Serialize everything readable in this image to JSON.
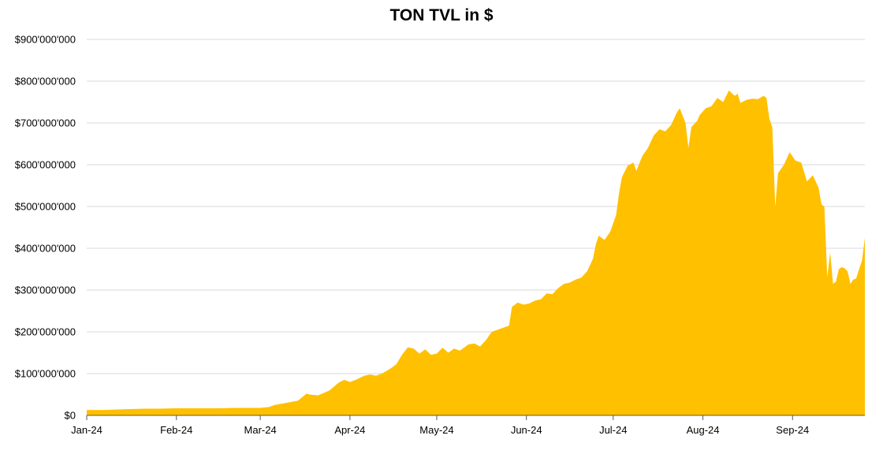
{
  "chart_data": {
    "type": "area",
    "title": "TON TVL in $",
    "xlabel": "",
    "ylabel": "",
    "ylim": [
      0,
      900000000
    ],
    "y_ticks": [
      {
        "value": 0,
        "label": "$0"
      },
      {
        "value": 100000000,
        "label": "$100'000'000"
      },
      {
        "value": 200000000,
        "label": "$200'000'000"
      },
      {
        "value": 300000000,
        "label": "$300'000'000"
      },
      {
        "value": 400000000,
        "label": "$400'000'000"
      },
      {
        "value": 500000000,
        "label": "$500'000'000"
      },
      {
        "value": 600000000,
        "label": "$600'000'000"
      },
      {
        "value": 700000000,
        "label": "$700'000'000"
      },
      {
        "value": 800000000,
        "label": "$800'000'000"
      },
      {
        "value": 900000000,
        "label": "$900'000'000"
      }
    ],
    "x_ticks": [
      {
        "date": "2024-01-01",
        "label": "Jan-24"
      },
      {
        "date": "2024-02-01",
        "label": "Feb-24"
      },
      {
        "date": "2024-03-01",
        "label": "Mar-24"
      },
      {
        "date": "2024-04-01",
        "label": "Apr-24"
      },
      {
        "date": "2024-05-01",
        "label": "May-24"
      },
      {
        "date": "2024-06-01",
        "label": "Jun-24"
      },
      {
        "date": "2024-07-01",
        "label": "Jul-24"
      },
      {
        "date": "2024-08-01",
        "label": "Aug-24"
      },
      {
        "date": "2024-09-01",
        "label": "Sep-24"
      }
    ],
    "xlim": [
      "2024-01-01",
      "2024-09-26"
    ],
    "grid": "horizontal",
    "legend": "none",
    "color": "#FFC000",
    "series": [
      {
        "points": [
          [
            "2024-01-01",
            13000000
          ],
          [
            "2024-01-06",
            13000000
          ],
          [
            "2024-01-11",
            14000000
          ],
          [
            "2024-01-16",
            15000000
          ],
          [
            "2024-01-21",
            16000000
          ],
          [
            "2024-01-26",
            16000000
          ],
          [
            "2024-02-01",
            17000000
          ],
          [
            "2024-02-06",
            17000000
          ],
          [
            "2024-02-11",
            17000000
          ],
          [
            "2024-02-16",
            17000000
          ],
          [
            "2024-02-21",
            18000000
          ],
          [
            "2024-02-26",
            18000000
          ],
          [
            "2024-03-01",
            18000000
          ],
          [
            "2024-03-04",
            20000000
          ],
          [
            "2024-03-06",
            25000000
          ],
          [
            "2024-03-10",
            30000000
          ],
          [
            "2024-03-14",
            35000000
          ],
          [
            "2024-03-17",
            52000000
          ],
          [
            "2024-03-18",
            50000000
          ],
          [
            "2024-03-21",
            48000000
          ],
          [
            "2024-03-25",
            60000000
          ],
          [
            "2024-03-28",
            78000000
          ],
          [
            "2024-03-30",
            85000000
          ],
          [
            "2024-04-01",
            80000000
          ],
          [
            "2024-04-03",
            85000000
          ],
          [
            "2024-04-06",
            95000000
          ],
          [
            "2024-04-08",
            98000000
          ],
          [
            "2024-04-10",
            95000000
          ],
          [
            "2024-04-12",
            100000000
          ],
          [
            "2024-04-15",
            112000000
          ],
          [
            "2024-04-17",
            122000000
          ],
          [
            "2024-04-19",
            145000000
          ],
          [
            "2024-04-21",
            163000000
          ],
          [
            "2024-04-23",
            160000000
          ],
          [
            "2024-04-25",
            148000000
          ],
          [
            "2024-04-27",
            158000000
          ],
          [
            "2024-04-29",
            145000000
          ],
          [
            "2024-05-01",
            148000000
          ],
          [
            "2024-05-03",
            162000000
          ],
          [
            "2024-05-05",
            150000000
          ],
          [
            "2024-05-07",
            160000000
          ],
          [
            "2024-05-09",
            155000000
          ],
          [
            "2024-05-12",
            170000000
          ],
          [
            "2024-05-14",
            172000000
          ],
          [
            "2024-05-16",
            165000000
          ],
          [
            "2024-05-18",
            180000000
          ],
          [
            "2024-05-20",
            200000000
          ],
          [
            "2024-05-22",
            205000000
          ],
          [
            "2024-05-24",
            210000000
          ],
          [
            "2024-05-26",
            215000000
          ],
          [
            "2024-05-27",
            260000000
          ],
          [
            "2024-05-29",
            270000000
          ],
          [
            "2024-05-31",
            265000000
          ],
          [
            "2024-06-02",
            268000000
          ],
          [
            "2024-06-04",
            275000000
          ],
          [
            "2024-06-06",
            278000000
          ],
          [
            "2024-06-08",
            292000000
          ],
          [
            "2024-06-10",
            290000000
          ],
          [
            "2024-06-12",
            305000000
          ],
          [
            "2024-06-14",
            315000000
          ],
          [
            "2024-06-16",
            318000000
          ],
          [
            "2024-06-18",
            325000000
          ],
          [
            "2024-06-20",
            330000000
          ],
          [
            "2024-06-22",
            345000000
          ],
          [
            "2024-06-24",
            375000000
          ],
          [
            "2024-06-25",
            410000000
          ],
          [
            "2024-06-26",
            430000000
          ],
          [
            "2024-06-28",
            420000000
          ],
          [
            "2024-06-30",
            440000000
          ],
          [
            "2024-07-01",
            460000000
          ],
          [
            "2024-07-02",
            480000000
          ],
          [
            "2024-07-03",
            530000000
          ],
          [
            "2024-07-04",
            570000000
          ],
          [
            "2024-07-06",
            598000000
          ],
          [
            "2024-07-08",
            605000000
          ],
          [
            "2024-07-09",
            585000000
          ],
          [
            "2024-07-11",
            620000000
          ],
          [
            "2024-07-13",
            640000000
          ],
          [
            "2024-07-15",
            670000000
          ],
          [
            "2024-07-17",
            685000000
          ],
          [
            "2024-07-19",
            680000000
          ],
          [
            "2024-07-21",
            695000000
          ],
          [
            "2024-07-23",
            725000000
          ],
          [
            "2024-07-24",
            735000000
          ],
          [
            "2024-07-26",
            700000000
          ],
          [
            "2024-07-27",
            640000000
          ],
          [
            "2024-07-28",
            690000000
          ],
          [
            "2024-07-30",
            705000000
          ],
          [
            "2024-07-31",
            720000000
          ],
          [
            "2024-08-02",
            735000000
          ],
          [
            "2024-08-04",
            740000000
          ],
          [
            "2024-08-06",
            760000000
          ],
          [
            "2024-08-08",
            750000000
          ],
          [
            "2024-08-10",
            778000000
          ],
          [
            "2024-08-12",
            765000000
          ],
          [
            "2024-08-13",
            770000000
          ],
          [
            "2024-08-14",
            748000000
          ],
          [
            "2024-08-16",
            755000000
          ],
          [
            "2024-08-18",
            758000000
          ],
          [
            "2024-08-20",
            757000000
          ],
          [
            "2024-08-22",
            765000000
          ],
          [
            "2024-08-23",
            760000000
          ],
          [
            "2024-08-24",
            710000000
          ],
          [
            "2024-08-25",
            690000000
          ],
          [
            "2024-08-26",
            500000000
          ],
          [
            "2024-08-27",
            580000000
          ],
          [
            "2024-08-29",
            600000000
          ],
          [
            "2024-08-31",
            630000000
          ],
          [
            "2024-09-02",
            610000000
          ],
          [
            "2024-09-04",
            605000000
          ],
          [
            "2024-09-06",
            560000000
          ],
          [
            "2024-09-08",
            575000000
          ],
          [
            "2024-09-10",
            545000000
          ],
          [
            "2024-09-11",
            505000000
          ],
          [
            "2024-09-12",
            500000000
          ],
          [
            "2024-09-13",
            330000000
          ],
          [
            "2024-09-14",
            390000000
          ],
          [
            "2024-09-15",
            315000000
          ],
          [
            "2024-09-16",
            320000000
          ],
          [
            "2024-09-17",
            350000000
          ],
          [
            "2024-09-18",
            355000000
          ],
          [
            "2024-09-19",
            352000000
          ],
          [
            "2024-09-20",
            345000000
          ],
          [
            "2024-09-21",
            315000000
          ],
          [
            "2024-09-22",
            325000000
          ],
          [
            "2024-09-23",
            328000000
          ],
          [
            "2024-09-24",
            350000000
          ],
          [
            "2024-09-25",
            370000000
          ]
        ]
      }
    ]
  }
}
